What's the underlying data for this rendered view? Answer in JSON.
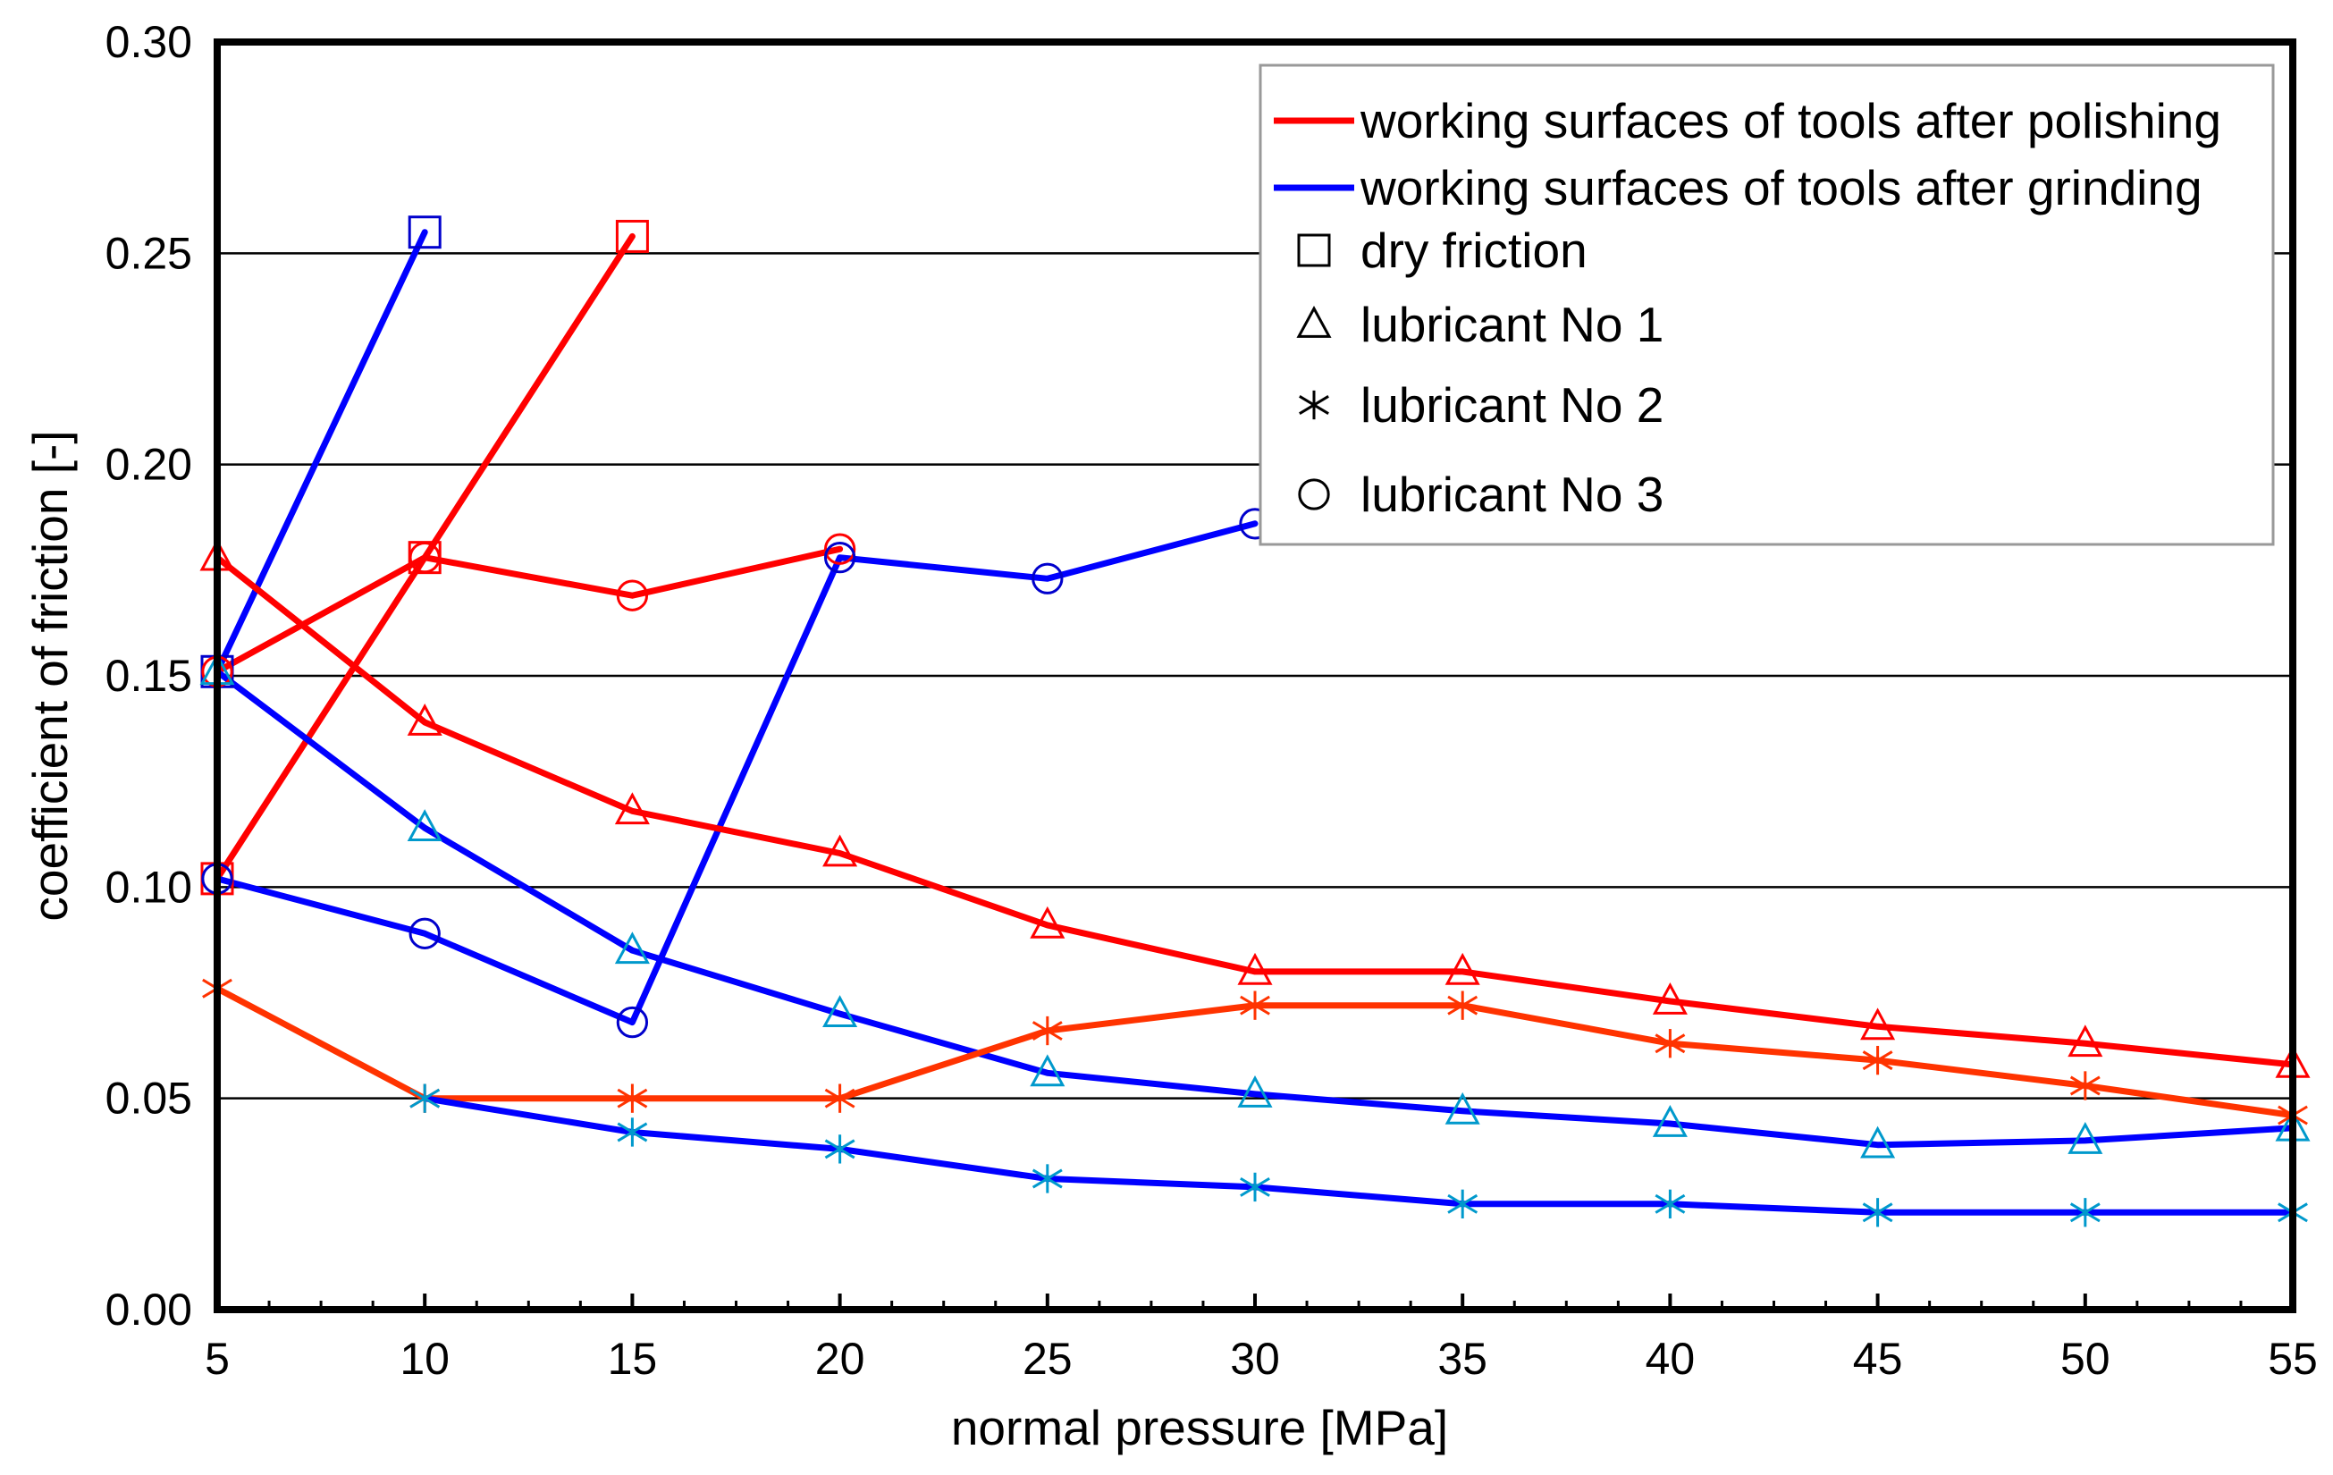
{
  "chart_data": {
    "type": "line",
    "title": "",
    "xlabel": "normal pressure [MPa]",
    "ylabel": "coefficient of friction [-]",
    "xlim": [
      5,
      55
    ],
    "ylim": [
      0.0,
      0.3
    ],
    "x_ticks": [
      "5",
      "10",
      "15",
      "20",
      "25",
      "30",
      "35",
      "40",
      "45",
      "50",
      "55"
    ],
    "y_ticks": [
      "0.00",
      "0.05",
      "0.10",
      "0.15",
      "0.20",
      "0.25",
      "0.30"
    ],
    "grid": "horizontal",
    "legend_position": "top-right",
    "legend": [
      {
        "kind": "line",
        "color": "#ff0000",
        "label": "working surfaces of tools after polishing"
      },
      {
        "kind": "line",
        "color": "#0000ff",
        "label": "working surfaces of tools after grinding"
      },
      {
        "kind": "marker",
        "marker": "square",
        "label": "dry friction"
      },
      {
        "kind": "marker",
        "marker": "triangle",
        "label": "lubricant No 1"
      },
      {
        "kind": "marker",
        "marker": "asterisk",
        "label": "lubricant No 2"
      },
      {
        "kind": "marker",
        "marker": "circle",
        "label": "lubricant No 3"
      }
    ],
    "series": [
      {
        "name": "grinding, dry friction",
        "surface": "grinding",
        "lubricant": "dry friction",
        "marker": "square",
        "line_color": "#0000ff",
        "marker_color": "#0000cc",
        "x": [
          5,
          10
        ],
        "y": [
          0.151,
          0.255
        ]
      },
      {
        "name": "polishing, dry friction",
        "surface": "polishing",
        "lubricant": "dry friction",
        "marker": "square",
        "line_color": "#ff0000",
        "marker_color": "#ff0000",
        "x": [
          5,
          10,
          15
        ],
        "y": [
          0.102,
          0.178,
          0.254
        ]
      },
      {
        "name": "polishing, lubricant No 3",
        "surface": "polishing",
        "lubricant": "lubricant No 3",
        "marker": "circle",
        "line_color": "#ff0000",
        "marker_color": "#ff0000",
        "x": [
          5,
          10,
          15,
          20
        ],
        "y": [
          0.151,
          0.178,
          0.169,
          0.18
        ]
      },
      {
        "name": "grinding, lubricant No 3",
        "surface": "grinding",
        "lubricant": "lubricant No 3",
        "marker": "circle",
        "line_color": "#0000ff",
        "marker_color": "#0000cc",
        "x": [
          5,
          10,
          15,
          20,
          25,
          30
        ],
        "y": [
          0.102,
          0.089,
          0.068,
          0.178,
          0.173,
          0.186
        ]
      },
      {
        "name": "polishing, lubricant No 1",
        "surface": "polishing",
        "lubricant": "lubricant No 1",
        "marker": "triangle",
        "line_color": "#ff0000",
        "marker_color": "#ff0000",
        "x": [
          5,
          10,
          15,
          20,
          25,
          30,
          35,
          40,
          45,
          50,
          55
        ],
        "y": [
          0.178,
          0.139,
          0.118,
          0.108,
          0.091,
          0.08,
          0.08,
          0.073,
          0.067,
          0.063,
          0.058
        ]
      },
      {
        "name": "grinding, lubricant No 1",
        "surface": "grinding",
        "lubricant": "lubricant No 1",
        "marker": "triangle",
        "line_color": "#0000ff",
        "marker_color": "#0099cc",
        "x": [
          5,
          10,
          15,
          20,
          25,
          30,
          35,
          40,
          45,
          50,
          55
        ],
        "y": [
          0.151,
          0.114,
          0.085,
          0.07,
          0.056,
          0.051,
          0.047,
          0.044,
          0.039,
          0.04,
          0.043
        ]
      },
      {
        "name": "polishing, lubricant No 2",
        "surface": "polishing",
        "lubricant": "lubricant No 2",
        "marker": "asterisk",
        "line_color": "#ff3300",
        "marker_color": "#ff3300",
        "x": [
          5,
          10,
          15,
          20,
          25,
          30,
          35,
          40,
          45,
          50,
          55
        ],
        "y": [
          0.076,
          0.05,
          0.05,
          0.05,
          0.066,
          0.072,
          0.072,
          0.063,
          0.059,
          0.053,
          0.046
        ]
      },
      {
        "name": "grinding, lubricant No 2",
        "surface": "grinding",
        "lubricant": "lubricant No 2",
        "marker": "asterisk",
        "line_color": "#0000ff",
        "marker_color": "#0099cc",
        "x": [
          10,
          15,
          20,
          25,
          30,
          35,
          40,
          45,
          50,
          55
        ],
        "y": [
          0.05,
          0.042,
          0.038,
          0.031,
          0.029,
          0.025,
          0.025,
          0.023,
          0.023,
          0.023
        ]
      }
    ]
  }
}
